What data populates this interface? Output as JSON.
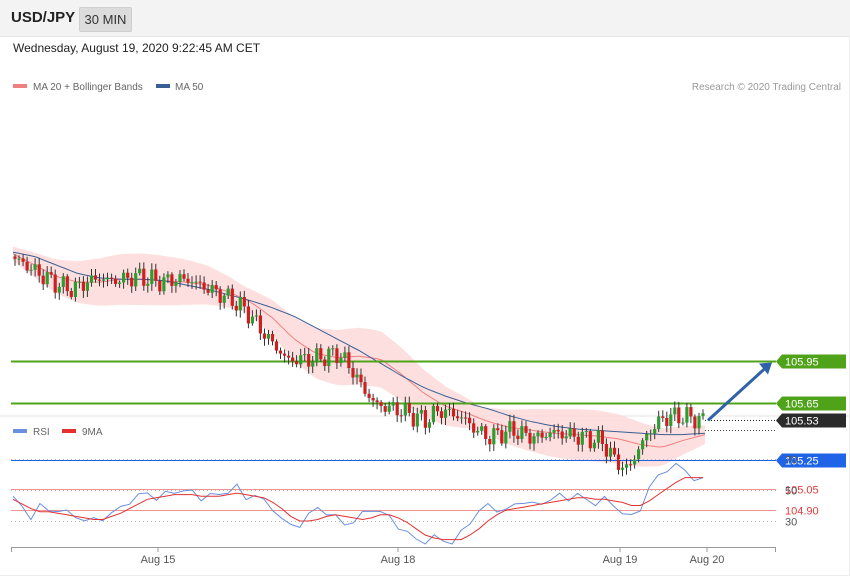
{
  "header": {
    "symbol": "USD/JPY",
    "timeframe": "30 MIN",
    "datetime": "Wednesday, August 19, 2020 9:22:45 AM CET"
  },
  "colors": {
    "ma20": "#f08080",
    "ma50": "#3a5f95",
    "bands": "#fcd4d4",
    "bull": "#2e9c2e",
    "bear": "#cc1f1f",
    "green_level": "#4fa319",
    "blue_level": "#1f64e6",
    "red_level": "#e23a3a",
    "rsi": "#6a8fe0",
    "rsi_ma": "#e53030",
    "arrow": "#2f62a8"
  },
  "chart_data": [
    {
      "type": "candlestick",
      "legend": [
        {
          "name": "MA 20 + Bollinger Bands",
          "color": "#f08080"
        },
        {
          "name": "MA 50",
          "color": "#3a5f95"
        }
      ],
      "credit": "Research © 2020 Trading Central",
      "levels": [
        {
          "value": 105.95,
          "label": "105.95",
          "kind": "resistance"
        },
        {
          "value": 105.65,
          "label": "105.65",
          "kind": "resistance"
        },
        {
          "value": 105.53,
          "label": "105.53",
          "kind": "last"
        },
        {
          "value": 105.25,
          "label": "105.25",
          "kind": "pivot"
        },
        {
          "value": 105.05,
          "label": "105.05",
          "kind": "support"
        },
        {
          "value": 104.9,
          "label": "104.90",
          "kind": "support"
        }
      ],
      "x_labels": [
        "Aug 15",
        "Aug 18",
        "Aug 19",
        "Aug 20"
      ],
      "ylim": [
        104.76,
        106.85
      ],
      "price_path": [
        [
          0,
          106.68
        ],
        [
          4,
          106.63
        ],
        [
          8,
          106.57
        ],
        [
          12,
          106.52
        ],
        [
          16,
          106.47
        ],
        [
          20,
          106.45
        ],
        [
          24,
          106.5
        ],
        [
          28,
          106.53
        ],
        [
          32,
          106.51
        ],
        [
          36,
          106.52
        ],
        [
          40,
          106.54
        ],
        [
          44,
          106.52
        ],
        [
          48,
          106.5
        ],
        [
          52,
          106.52
        ],
        [
          56,
          106.52
        ],
        [
          60,
          106.48
        ],
        [
          64,
          106.44
        ],
        [
          68,
          106.4
        ],
        [
          72,
          106.35
        ],
        [
          76,
          106.27
        ],
        [
          80,
          106.15
        ],
        [
          84,
          106.05
        ],
        [
          88,
          105.95
        ],
        [
          92,
          105.96
        ],
        [
          96,
          105.96
        ],
        [
          100,
          105.98
        ],
        [
          104,
          106.0
        ],
        [
          108,
          105.9
        ],
        [
          112,
          105.75
        ],
        [
          116,
          105.64
        ],
        [
          120,
          105.62
        ],
        [
          124,
          105.6
        ],
        [
          128,
          105.56
        ],
        [
          132,
          105.53
        ],
        [
          136,
          105.6
        ],
        [
          140,
          105.58
        ],
        [
          144,
          105.54
        ],
        [
          148,
          105.46
        ],
        [
          152,
          105.41
        ],
        [
          156,
          105.44
        ],
        [
          160,
          105.46
        ],
        [
          164,
          105.42
        ],
        [
          168,
          105.41
        ],
        [
          172,
          105.45
        ],
        [
          176,
          105.43
        ],
        [
          180,
          105.42
        ],
        [
          184,
          105.4
        ],
        [
          188,
          105.38
        ],
        [
          192,
          105.25
        ],
        [
          196,
          105.18
        ],
        [
          200,
          105.35
        ],
        [
          204,
          105.48
        ],
        [
          208,
          105.55
        ],
        [
          212,
          105.56
        ],
        [
          216,
          105.55
        ],
        [
          220,
          105.53
        ]
      ],
      "candle_count": 172,
      "ma20": [
        106.7,
        106.62,
        106.54,
        106.5,
        106.5,
        106.52,
        106.52,
        106.51,
        106.5,
        106.48,
        106.43,
        106.36,
        106.25,
        106.1,
        106.0,
        105.97,
        105.98,
        105.96,
        105.85,
        105.72,
        105.63,
        105.58,
        105.52,
        105.48,
        105.46,
        105.44,
        105.43,
        105.42,
        105.4,
        105.36,
        105.34,
        105.39,
        105.43
      ],
      "ma50": [
        106.71,
        106.68,
        106.62,
        106.56,
        106.53,
        106.52,
        106.52,
        106.51,
        106.48,
        106.45,
        106.41,
        106.37,
        106.32,
        106.26,
        106.18,
        106.1,
        106.02,
        105.93,
        105.84,
        105.76,
        105.7,
        105.65,
        105.61,
        105.56,
        105.52,
        105.49,
        105.47,
        105.46,
        105.45,
        105.44,
        105.43,
        105.43,
        105.44
      ]
    },
    {
      "type": "line",
      "legend": [
        {
          "name": "RSI",
          "color": "#6a8fe0"
        },
        {
          "name": "9MA",
          "color": "#e53030"
        }
      ],
      "y_ticks": [
        "70",
        "50",
        "30"
      ],
      "ylim": [
        10,
        80
      ],
      "series": [
        {
          "name": "RSI",
          "values": [
            46,
            38,
            33,
            40,
            36,
            38,
            35,
            33,
            31,
            30,
            32,
            35,
            38,
            43,
            46,
            48,
            45,
            47,
            49,
            50,
            48,
            45,
            47,
            46,
            50,
            52,
            44,
            48,
            42,
            38,
            32,
            26,
            28,
            34,
            38,
            36,
            32,
            28,
            30,
            34,
            38,
            36,
            32,
            27,
            22,
            18,
            17,
            19,
            18,
            16,
            22,
            30,
            36,
            40,
            38,
            36,
            41,
            43,
            40,
            42,
            44,
            46,
            45,
            47,
            43,
            42,
            44,
            40,
            36,
            32,
            38,
            52,
            58,
            64,
            66,
            62,
            58,
            56
          ]
        },
        {
          "name": "9MA",
          "values": [
            44,
            41,
            38,
            36,
            36,
            35,
            34,
            33,
            32,
            31,
            31,
            33,
            35,
            38,
            41,
            44,
            45,
            46,
            47,
            47,
            47,
            46,
            46,
            46,
            47,
            48,
            47,
            46,
            45,
            42,
            38,
            33,
            30,
            30,
            31,
            33,
            34,
            33,
            32,
            31,
            32,
            34,
            34,
            32,
            29,
            25,
            21,
            19,
            18,
            18,
            18,
            21,
            25,
            30,
            34,
            37,
            38,
            39,
            40,
            41,
            42,
            43,
            44,
            45,
            45,
            44,
            44,
            43,
            42,
            40,
            40,
            43,
            47,
            51,
            55,
            58,
            58,
            58
          ]
        }
      ]
    }
  ],
  "overlay": {
    "target_arrow": {
      "from_value": 105.53,
      "to_value": 105.95
    }
  }
}
